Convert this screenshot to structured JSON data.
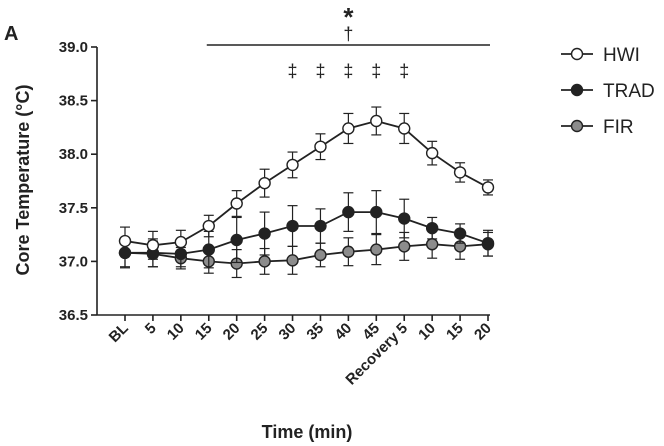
{
  "chart_data": {
    "type": "line",
    "panel_label": "A",
    "xlabel": "Time (min)",
    "ylabel": "Core Temperature (°C)",
    "categories": [
      "BL",
      "5",
      "10",
      "15",
      "20",
      "25",
      "30",
      "35",
      "40",
      "45",
      "Recovery 5",
      "10",
      "15",
      "20"
    ],
    "ylim": [
      36.5,
      39.0
    ],
    "yticks": [
      "36.5",
      "37.0",
      "37.5",
      "38.0",
      "38.5",
      "39.0"
    ],
    "grid": false,
    "legend_position": "top-right",
    "series": [
      {
        "name": "HWI",
        "marker_fill": "#ffffff",
        "values": [
          37.19,
          37.15,
          37.18,
          37.33,
          37.54,
          37.73,
          37.9,
          38.07,
          38.24,
          38.31,
          38.24,
          38.01,
          37.83,
          37.69
        ],
        "error": [
          0.13,
          0.13,
          0.11,
          0.1,
          0.12,
          0.13,
          0.12,
          0.12,
          0.14,
          0.13,
          0.14,
          0.11,
          0.09,
          0.07
        ]
      },
      {
        "name": "TRAD",
        "marker_fill": "#222222",
        "values": [
          37.08,
          37.08,
          37.07,
          37.11,
          37.2,
          37.26,
          37.33,
          37.33,
          37.46,
          37.46,
          37.4,
          37.31,
          37.26,
          37.17
        ],
        "error": [
          0.13,
          0.13,
          0.12,
          0.17,
          0.21,
          0.2,
          0.19,
          0.16,
          0.18,
          0.2,
          0.18,
          0.1,
          0.09,
          0.12
        ]
      },
      {
        "name": "FIR",
        "marker_fill": "#8c8c8c",
        "values": [
          37.08,
          37.07,
          37.03,
          37.0,
          36.98,
          37.0,
          37.01,
          37.06,
          37.09,
          37.11,
          37.14,
          37.16,
          37.14,
          37.16
        ],
        "error": [
          0.14,
          0.12,
          0.1,
          0.11,
          0.13,
          0.12,
          0.13,
          0.11,
          0.13,
          0.14,
          0.13,
          0.13,
          0.12,
          0.11
        ]
      }
    ],
    "annotations": {
      "star": "*",
      "dagger": "†",
      "dagger_bar_range": [
        "15",
        "20"
      ],
      "double_dagger": "‡",
      "double_dagger_at": [
        "30",
        "35",
        "40",
        "45",
        "Recovery 5"
      ]
    }
  }
}
